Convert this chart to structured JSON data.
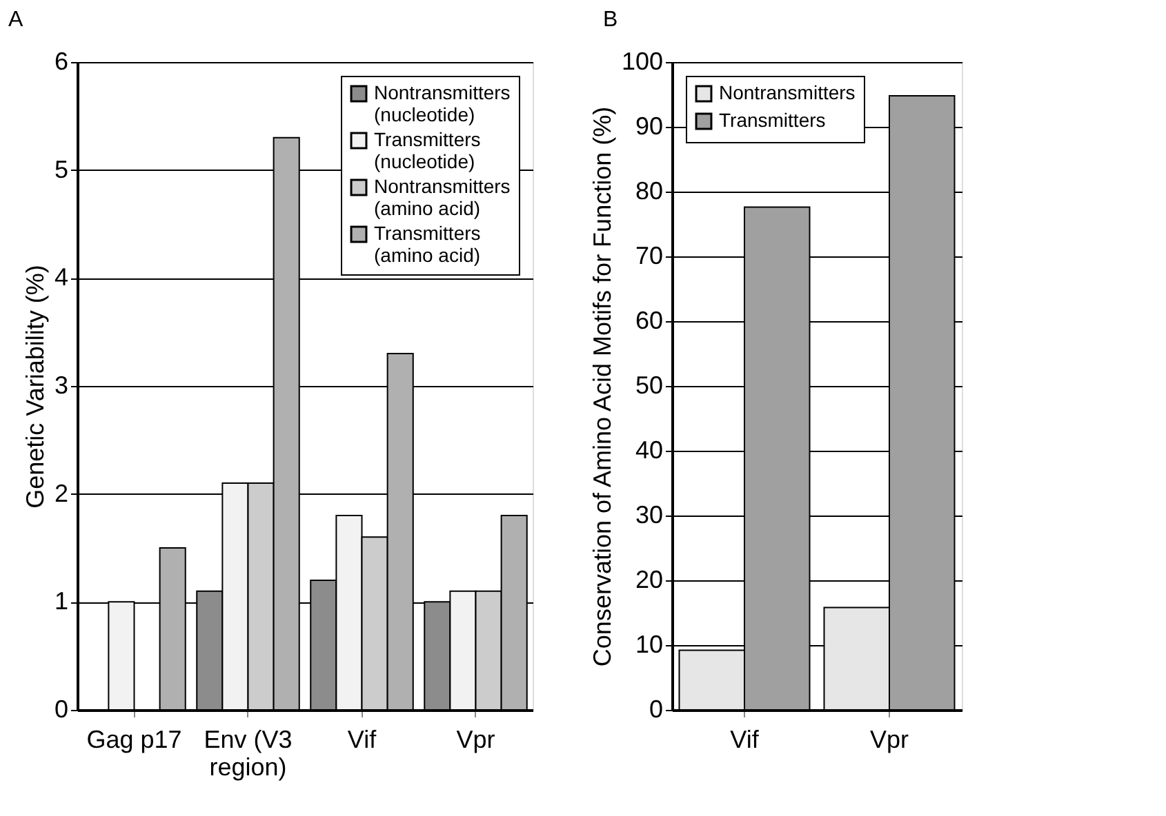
{
  "chart_data": [
    {
      "type": "bar",
      "title": "A",
      "ylabel": "Genetic Variability (%)",
      "categories": [
        "Gag p17",
        "Env (V3 region)",
        "Vif",
        "Vpr"
      ],
      "series": [
        {
          "name": "Nontransmitters (nucleotide)",
          "color": "#8c8c8c",
          "values": [
            null,
            1.1,
            1.2,
            1.0
          ]
        },
        {
          "name": "Transmitters (nucleotide)",
          "color": "#f2f2f2",
          "values": [
            1.0,
            2.1,
            1.8,
            1.1
          ]
        },
        {
          "name": "Nontransmitters (amino acid)",
          "color": "#cccccc",
          "values": [
            null,
            2.1,
            1.6,
            1.1
          ]
        },
        {
          "name": "Transmitters (amino acid)",
          "color": "#b0b0b0",
          "values": [
            1.5,
            5.3,
            3.3,
            1.8
          ]
        }
      ],
      "ylim": [
        0,
        6
      ],
      "yticks": [
        0,
        1,
        2,
        3,
        4,
        5,
        6
      ],
      "grid": "y",
      "legend": "top right"
    },
    {
      "type": "bar",
      "title": "B",
      "ylabel": "Conservation of Amino Acid Motifs for Function (%)",
      "categories": [
        "Vif",
        "Vpr"
      ],
      "series": [
        {
          "name": "Nontransmitters",
          "color": "#e6e6e6",
          "values": [
            9.2,
            15.8
          ]
        },
        {
          "name": "Transmitters",
          "color": "#a0a0a0",
          "values": [
            77.6,
            94.8
          ]
        }
      ],
      "ylim": [
        0,
        100
      ],
      "yticks": [
        0,
        10,
        20,
        30,
        40,
        50,
        60,
        70,
        80,
        90,
        100
      ],
      "grid": "y",
      "legend": "top left"
    }
  ]
}
